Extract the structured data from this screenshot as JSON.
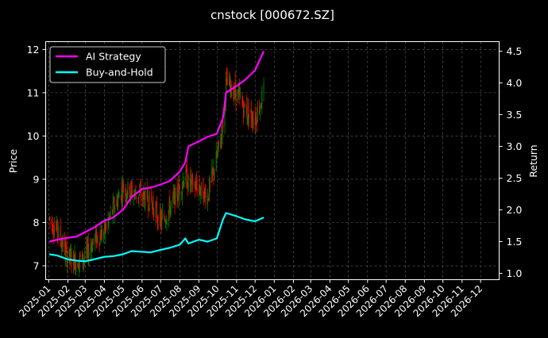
{
  "chart_data": {
    "type": "line",
    "title": "cnstock [000672.SZ]",
    "ylabel_left": "Price",
    "ylabel_right": "Return",
    "ylim_left": [
      6.68,
      12.18
    ],
    "ylim_right": [
      0.9,
      4.65
    ],
    "xlim": [
      "2024-12-27",
      "2026-12-31"
    ],
    "left_ticks": [
      7,
      8,
      9,
      10,
      11,
      12
    ],
    "right_ticks": [
      "1.0",
      "1.5",
      "2.0",
      "2.5",
      "3.0",
      "3.5",
      "4.0",
      "4.5"
    ],
    "x_ticks": [
      "2025-01",
      "2025-02",
      "2025-03",
      "2025-04",
      "2025-05",
      "2025-06",
      "2025-07",
      "2025-08",
      "2025-09",
      "2025-10",
      "2025-11",
      "2025-12",
      "2026-01",
      "2026-02",
      "2026-03",
      "2026-04",
      "2026-05",
      "2026-06",
      "2026-07",
      "2026-08",
      "2026-09",
      "2026-10",
      "2026-11",
      "2026-12"
    ],
    "grid": true,
    "legend_position": "top-left",
    "background": "#000000",
    "candle_up_color": "#008000",
    "candle_down_color": "#ff0000",
    "series": [
      {
        "name": "AI Strategy",
        "color": "#ff00ff",
        "axis": "right",
        "x": [
          "2025-01-02",
          "2025-01-15",
          "2025-02-01",
          "2025-02-15",
          "2025-03-01",
          "2025-03-15",
          "2025-04-01",
          "2025-04-15",
          "2025-05-01",
          "2025-05-15",
          "2025-06-01",
          "2025-06-15",
          "2025-07-01",
          "2025-07-15",
          "2025-08-01",
          "2025-08-10",
          "2025-08-15",
          "2025-09-01",
          "2025-09-15",
          "2025-09-30",
          "2025-10-10",
          "2025-10-15",
          "2025-11-01",
          "2025-11-15",
          "2025-12-01",
          "2025-12-15"
        ],
        "values": [
          1.5,
          1.53,
          1.56,
          1.58,
          1.65,
          1.72,
          1.83,
          1.88,
          2.0,
          2.2,
          2.33,
          2.35,
          2.4,
          2.45,
          2.6,
          2.75,
          3.0,
          3.08,
          3.15,
          3.2,
          3.45,
          3.85,
          3.95,
          4.05,
          4.2,
          4.5
        ]
      },
      {
        "name": "Buy-and-Hold",
        "color": "#00ffff",
        "axis": "right",
        "x": [
          "2025-01-02",
          "2025-01-15",
          "2025-02-01",
          "2025-02-15",
          "2025-03-01",
          "2025-03-15",
          "2025-04-01",
          "2025-04-15",
          "2025-05-01",
          "2025-05-15",
          "2025-06-01",
          "2025-06-15",
          "2025-07-01",
          "2025-07-15",
          "2025-08-01",
          "2025-08-10",
          "2025-08-15",
          "2025-09-01",
          "2025-09-15",
          "2025-09-30",
          "2025-10-10",
          "2025-10-15",
          "2025-11-01",
          "2025-11-15",
          "2025-12-01",
          "2025-12-15"
        ],
        "values": [
          1.3,
          1.28,
          1.22,
          1.2,
          1.19,
          1.22,
          1.26,
          1.27,
          1.3,
          1.35,
          1.34,
          1.33,
          1.37,
          1.4,
          1.45,
          1.55,
          1.47,
          1.53,
          1.5,
          1.55,
          1.85,
          1.95,
          1.9,
          1.85,
          1.82,
          1.88
        ]
      },
      {
        "name": "",
        "color": "#ff0000",
        "axis": "left",
        "x": [
          "2025-01-02",
          "2025-01-15",
          "2025-02-01",
          "2025-02-15",
          "2025-03-01",
          "2025-03-15",
          "2025-04-01",
          "2025-04-15",
          "2025-05-01",
          "2025-05-15",
          "2025-06-01",
          "2025-06-15",
          "2025-07-01",
          "2025-07-15",
          "2025-08-01",
          "2025-08-10",
          "2025-08-15",
          "2025-09-01",
          "2025-09-15",
          "2025-09-30",
          "2025-10-10",
          "2025-10-15",
          "2025-11-01",
          "2025-11-15",
          "2025-12-01",
          "2025-12-15"
        ],
        "values": [
          8.1,
          7.8,
          7.2,
          7.1,
          7.2,
          7.6,
          7.8,
          8.3,
          8.8,
          8.7,
          8.6,
          8.5,
          8.0,
          8.3,
          8.8,
          9.1,
          8.9,
          8.8,
          8.6,
          9.5,
          10.3,
          11.2,
          11.0,
          10.6,
          10.4,
          11.0
        ]
      }
    ]
  }
}
